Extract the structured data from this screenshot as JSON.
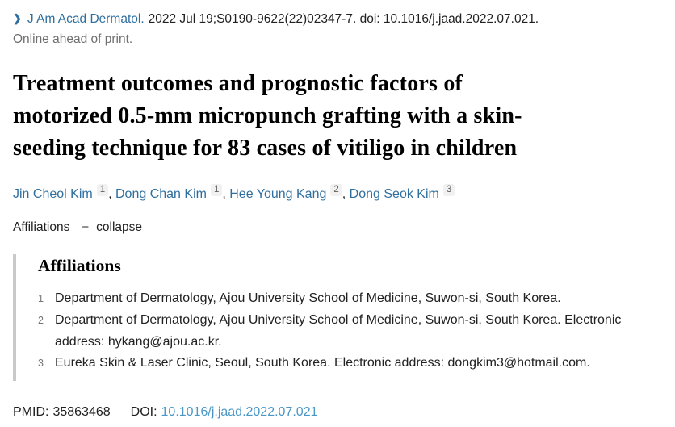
{
  "icons": {
    "chevron_right": "❯",
    "collapse_minus": "−"
  },
  "citation": {
    "journal_link": "J Am Acad Dermatol.",
    "details": "2022 Jul 19;S0190-9622(22)02347-7. doi: 10.1016/j.jaad.2022.07.021.",
    "status": "Online ahead of print."
  },
  "title_lines": [
    "Treatment outcomes and prognostic factors of",
    "motorized 0.5-mm micropunch grafting with a skin-",
    "seeding technique for 83 cases of vitiligo in children"
  ],
  "authors": {
    "separator": ", ",
    "items": [
      {
        "name": "Jin Cheol Kim",
        "sup": "1"
      },
      {
        "name": "Dong Chan Kim",
        "sup": "1"
      },
      {
        "name": "Hee Young Kang",
        "sup": "2"
      },
      {
        "name": "Dong Seok Kim",
        "sup": "3"
      }
    ]
  },
  "affiliations_toggle": {
    "label": "Affiliations",
    "collapse_label": "collapse"
  },
  "affiliations": {
    "heading": "Affiliations",
    "items": [
      {
        "number": "1",
        "text": "Department of Dermatology, Ajou University School of Medicine, Suwon-si, South Korea."
      },
      {
        "number": "2",
        "text": "Department of Dermatology, Ajou University School of Medicine, Suwon-si, South Korea. Electronic address: hykang@ajou.ac.kr."
      },
      {
        "number": "3",
        "text": "Eureka Skin & Laser Clinic, Seoul, South Korea. Electronic address: dongkim3@hotmail.com."
      }
    ]
  },
  "identifiers": {
    "pmid_label": "PMID:",
    "pmid_value": "35863468",
    "doi_label": "DOI:",
    "doi_link": "10.1016/j.jaad.2022.07.021"
  },
  "colors": {
    "link_blue": "#2f6f9f",
    "doi_link_blue": "#4a97c5",
    "muted_gray_text": "#6f6f6f",
    "sup_chip_bg": "#f1f1f1",
    "panel_border_gray": "#c9c9c9",
    "title_black": "#000000",
    "body_text": "#212121"
  }
}
